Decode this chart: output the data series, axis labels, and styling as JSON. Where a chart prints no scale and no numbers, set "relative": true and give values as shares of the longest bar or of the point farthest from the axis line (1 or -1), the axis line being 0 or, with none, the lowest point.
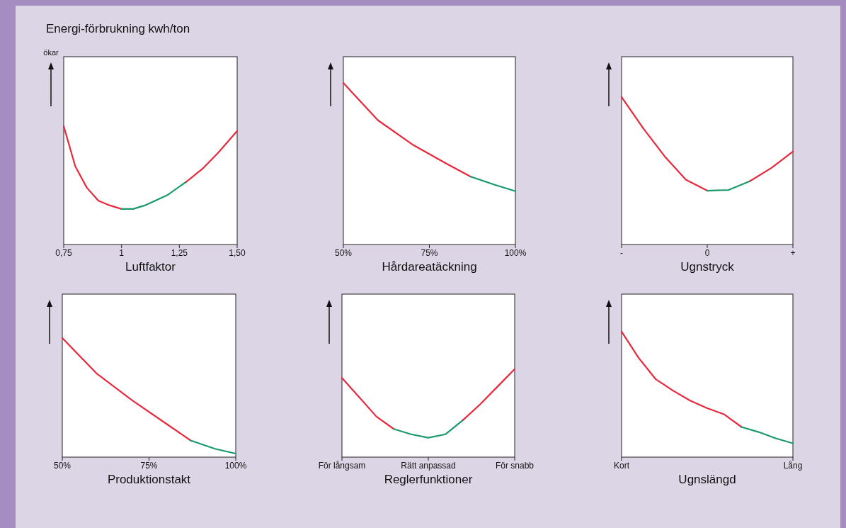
{
  "chart_data": [
    {
      "type": "line",
      "relative": true,
      "title": "Energi-förbrukning kwh/ton",
      "ylabel": "ökar",
      "xlabel": "Luftfaktor",
      "xlim": [
        0.75,
        1.5
      ],
      "xticks": [
        {
          "value": 0.75,
          "label": "0,75"
        },
        1,
        {
          "value": 1.25,
          "label": "1,25"
        },
        {
          "value": 1.5,
          "label": "1,50"
        }
      ],
      "series": [
        {
          "color": "#e8283c",
          "x": [
            0.75,
            0.8,
            0.85,
            0.9,
            0.95,
            1.0
          ],
          "values": [
            1,
            0.66,
            0.48,
            0.37,
            0.33,
            0.3
          ]
        },
        {
          "color": "#1a9a6a",
          "x": [
            1.0,
            1.05,
            1.1,
            1.2,
            1.28
          ],
          "values": [
            0.3,
            0.3,
            0.33,
            0.42,
            0.53
          ]
        },
        {
          "color": "#e8283c",
          "x": [
            1.28,
            1.35,
            1.42,
            1.5
          ],
          "values": [
            0.53,
            0.64,
            0.78,
            0.96
          ]
        }
      ]
    },
    {
      "type": "line",
      "relative": true,
      "xlabel": "Hårdareatäckning",
      "xlim": [
        50,
        100
      ],
      "xticks": [
        {
          "value": 50,
          "label": "50%"
        },
        {
          "value": 75,
          "label": "75%"
        },
        {
          "value": 100,
          "label": "100%"
        }
      ],
      "series": [
        {
          "color": "#e8283c",
          "x": [
            50,
            60,
            70,
            80,
            87
          ],
          "values": [
            1,
            0.77,
            0.62,
            0.5,
            0.42
          ]
        },
        {
          "color": "#1a9a6a",
          "x": [
            87,
            94,
            100
          ],
          "values": [
            0.42,
            0.37,
            0.33
          ]
        }
      ]
    },
    {
      "type": "line",
      "relative": true,
      "xlabel": "Ugnstryck",
      "categories": [
        "-",
        null,
        null,
        null,
        "0",
        null,
        null,
        null,
        "+"
      ],
      "series": [
        {
          "color": "#e8283c",
          "values": [
            1,
            0.79,
            0.6,
            0.44,
            0.365,
            null,
            null,
            null,
            null
          ]
        },
        {
          "color": "#1a9a6a",
          "values": [
            null,
            null,
            null,
            null,
            0.365,
            0.37,
            0.43,
            null,
            null
          ]
        },
        {
          "color": "#e8283c",
          "values": [
            null,
            null,
            null,
            null,
            null,
            null,
            0.43,
            0.52,
            0.63
          ]
        }
      ]
    },
    {
      "type": "line",
      "relative": true,
      "xlabel": "Produktionstakt",
      "xlim": [
        50,
        100
      ],
      "xticks": [
        {
          "value": 50,
          "label": "50%"
        },
        {
          "value": 75,
          "label": "75%"
        },
        {
          "value": 100,
          "label": "100%"
        }
      ],
      "series": [
        {
          "color": "#e8283c",
          "x": [
            50,
            60,
            70,
            80,
            87
          ],
          "values": [
            1,
            0.7,
            0.48,
            0.28,
            0.14
          ]
        },
        {
          "color": "#1a9a6a",
          "x": [
            87,
            94,
            100
          ],
          "values": [
            0.14,
            0.07,
            0.03
          ]
        }
      ]
    },
    {
      "type": "line",
      "relative": true,
      "xlabel": "Reglerfunktioner",
      "categories": [
        "För långsam",
        null,
        null,
        null,
        null,
        "Rätt anpassad",
        null,
        null,
        null,
        null,
        "För snabb"
      ],
      "series": [
        {
          "color": "#e8283c",
          "values": [
            0.9,
            0.68,
            0.46,
            0.32,
            null,
            null,
            null,
            null,
            null,
            null,
            null
          ]
        },
        {
          "color": "#1a9a6a",
          "values": [
            null,
            null,
            null,
            0.32,
            0.26,
            0.22,
            0.26,
            0.42,
            null,
            null,
            null
          ]
        },
        {
          "color": "#e8283c",
          "values": [
            null,
            null,
            null,
            null,
            null,
            null,
            null,
            0.42,
            0.6,
            0.8,
            1
          ]
        }
      ]
    },
    {
      "type": "line",
      "relative": true,
      "xlabel": "Ugnslängd",
      "categories": [
        "Kort",
        null,
        null,
        null,
        null,
        null,
        null,
        null,
        null,
        null,
        "Lång"
      ],
      "series": [
        {
          "color": "#e8283c",
          "values": [
            1,
            0.79,
            0.62,
            0.53,
            0.45,
            0.39,
            0.34,
            0.24,
            null,
            null,
            null
          ]
        },
        {
          "color": "#1a9a6a",
          "values": [
            null,
            null,
            null,
            null,
            null,
            null,
            null,
            0.24,
            0.2,
            0.15,
            0.11
          ]
        }
      ]
    }
  ]
}
